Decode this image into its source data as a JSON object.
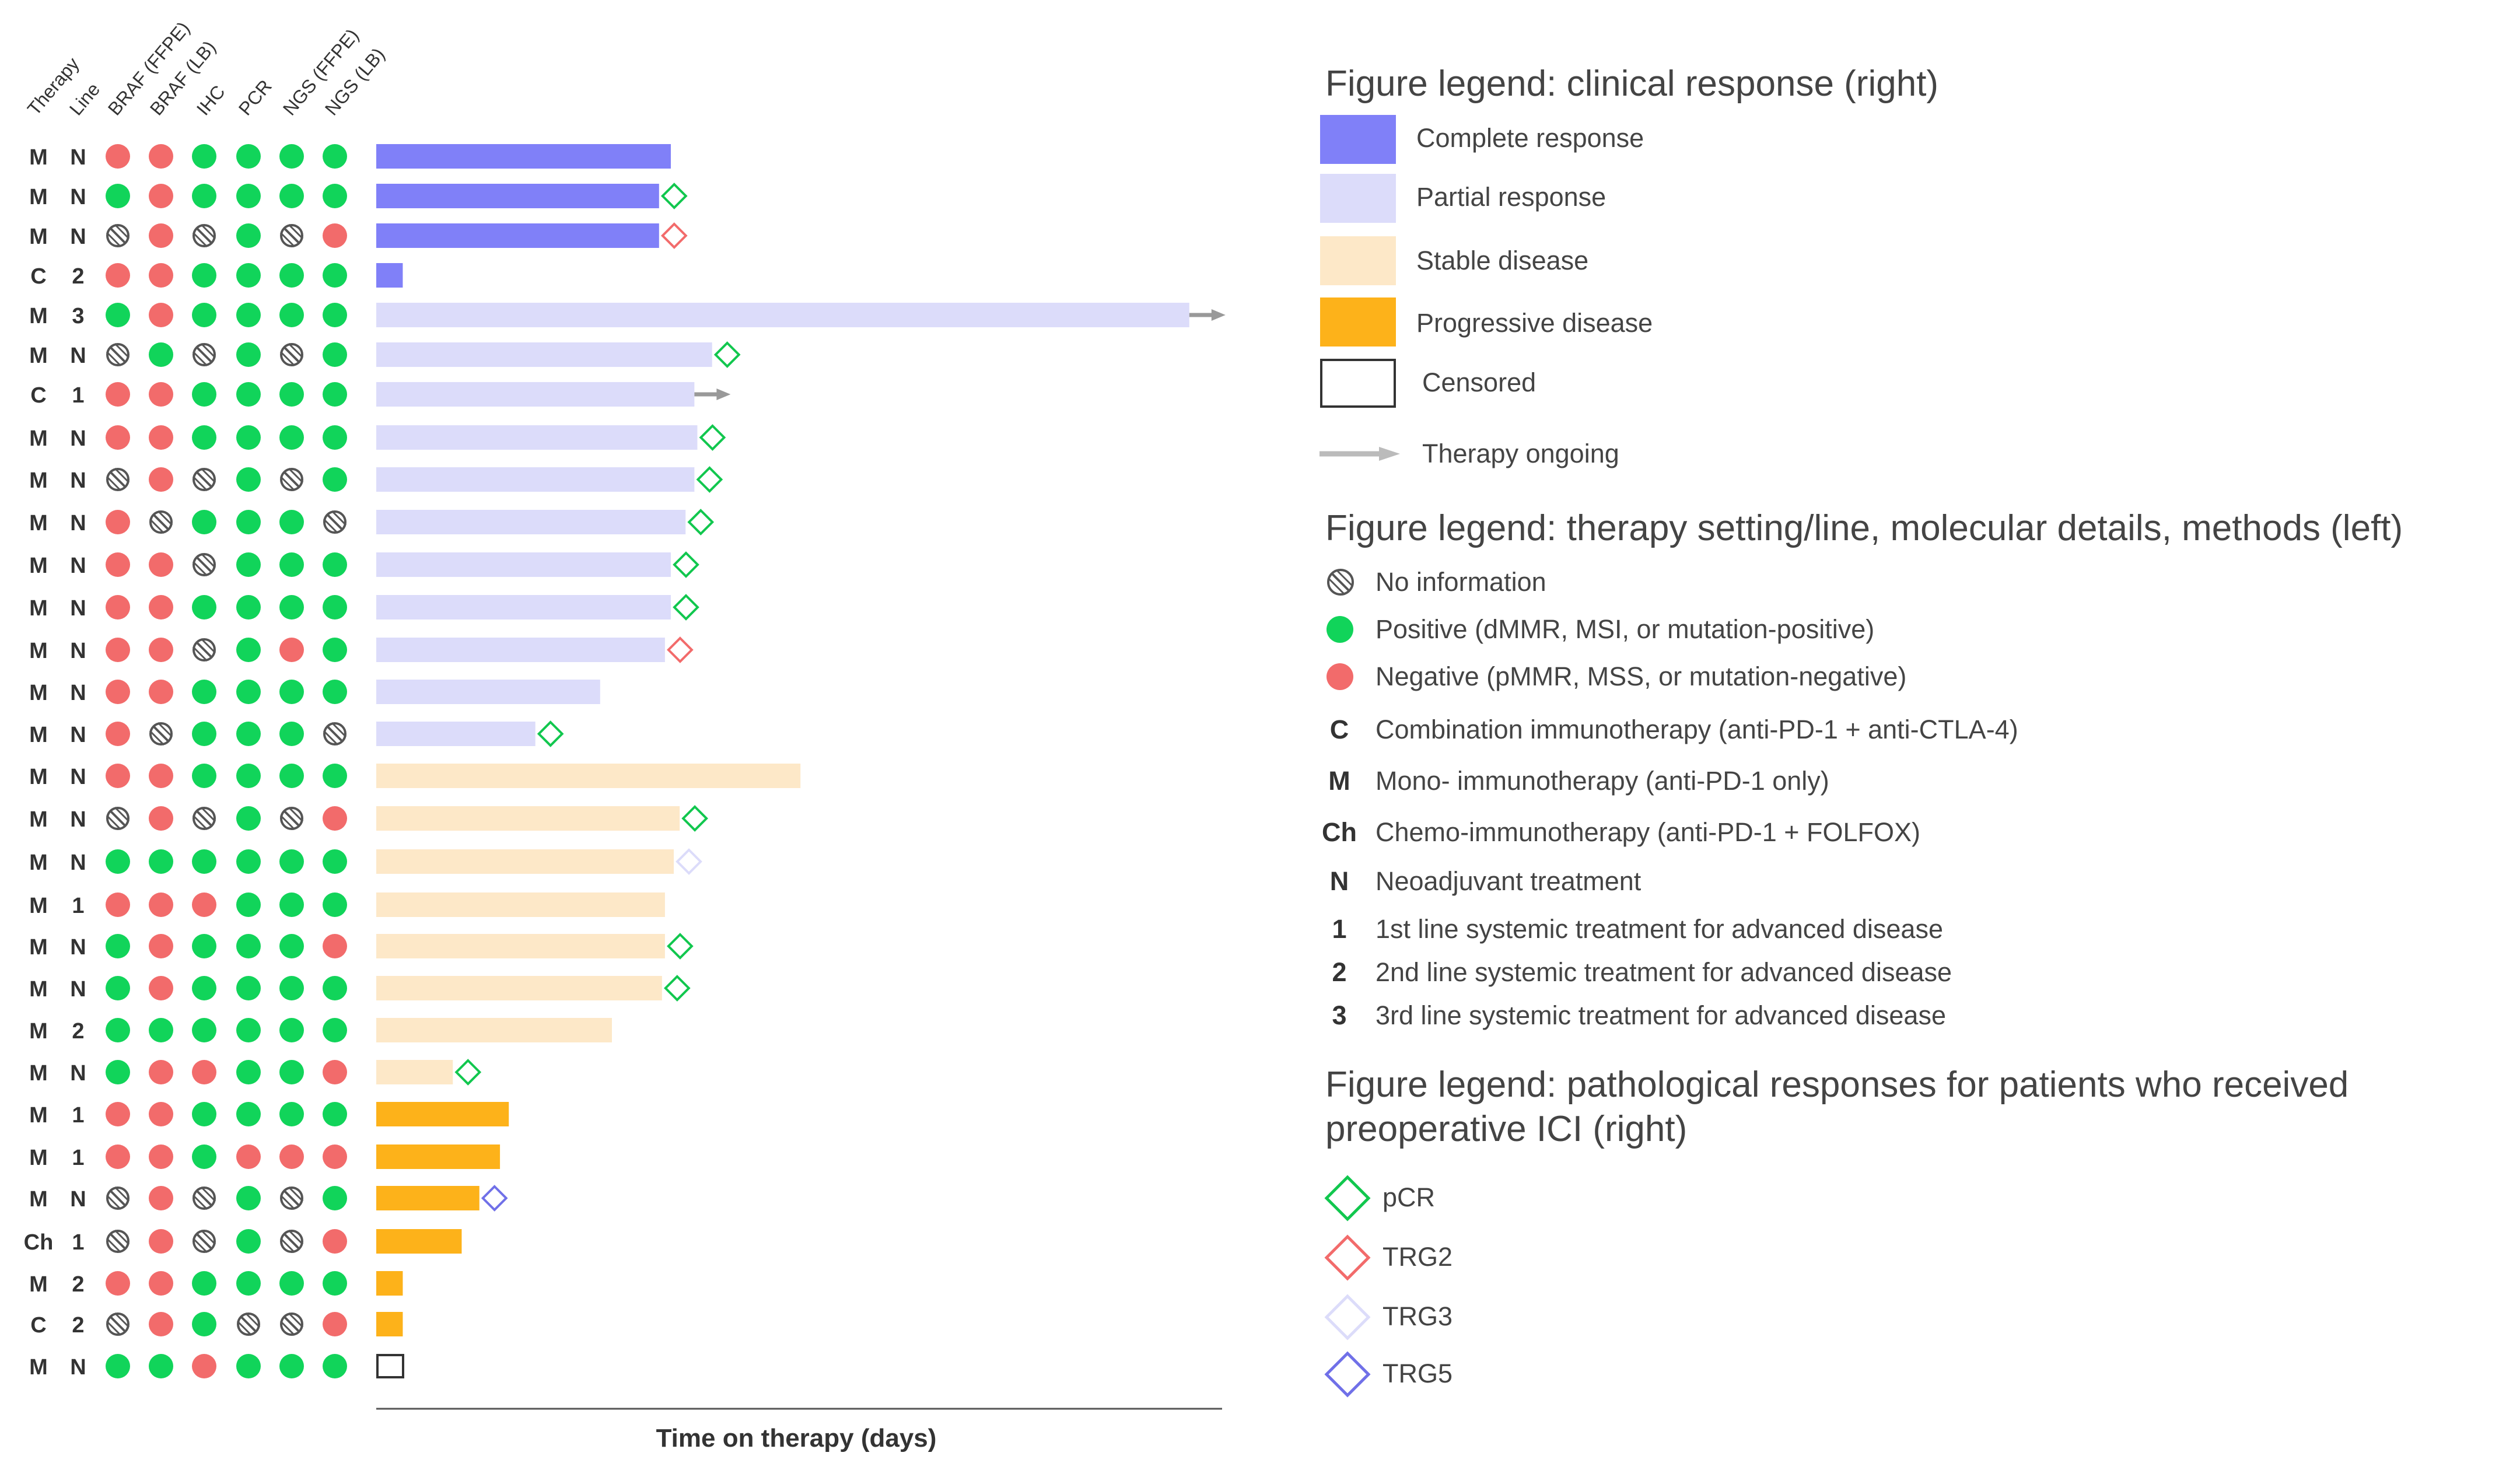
{
  "column_headers": [
    "Therapy",
    "Line",
    "BRAF (FFPE)",
    "BRAF (LB)",
    "IHC",
    "PCR",
    "NGS (FFPE)",
    "NGS (LB)"
  ],
  "colors": {
    "complete_response": "#8080F8",
    "partial_response": "#DCDCFA",
    "stable_disease": "#FDE8C8",
    "progressive_disease": "#FDB21A",
    "positive": "#11D45A",
    "negative": "#F26B6B",
    "pcr": "#11C74E",
    "trg2": "#F26B6B",
    "trg3": "#DCDCFA",
    "trg5": "#7070E8",
    "arrow": "#999999",
    "no_info": "#555555"
  },
  "chart_data": {
    "type": "swimmer",
    "xlabel": "Time on therapy (days)",
    "x_scale": "unlabeled",
    "rows": [
      {
        "therapy": "M",
        "line": "N",
        "markers": [
          "neg",
          "neg",
          "pos",
          "pos",
          "pos",
          "pos"
        ],
        "response": "complete_response",
        "value": 50,
        "path": null,
        "ongoing": false
      },
      {
        "therapy": "M",
        "line": "N",
        "markers": [
          "pos",
          "neg",
          "pos",
          "pos",
          "pos",
          "pos"
        ],
        "response": "complete_response",
        "value": 48,
        "path": "pCR",
        "ongoing": false
      },
      {
        "therapy": "M",
        "line": "N",
        "markers": [
          "ni",
          "neg",
          "ni",
          "pos",
          "ni",
          "neg"
        ],
        "response": "complete_response",
        "value": 48,
        "path": "TRG2",
        "ongoing": false
      },
      {
        "therapy": "C",
        "line": "2",
        "markers": [
          "neg",
          "neg",
          "pos",
          "pos",
          "pos",
          "pos"
        ],
        "response": "complete_response",
        "value": 4.5,
        "path": null,
        "ongoing": false
      },
      {
        "therapy": "M",
        "line": "3",
        "markers": [
          "pos",
          "neg",
          "pos",
          "pos",
          "pos",
          "pos"
        ],
        "response": "partial_response",
        "value": 138,
        "path": null,
        "ongoing": true
      },
      {
        "therapy": "M",
        "line": "N",
        "markers": [
          "ni",
          "pos",
          "ni",
          "pos",
          "ni",
          "pos"
        ],
        "response": "partial_response",
        "value": 57,
        "path": "pCR",
        "ongoing": false
      },
      {
        "therapy": "C",
        "line": "1",
        "markers": [
          "neg",
          "neg",
          "pos",
          "pos",
          "pos",
          "pos"
        ],
        "response": "partial_response",
        "value": 54,
        "path": null,
        "ongoing": true
      },
      {
        "therapy": "M",
        "line": "N",
        "markers": [
          "neg",
          "neg",
          "pos",
          "pos",
          "pos",
          "pos"
        ],
        "response": "partial_response",
        "value": 54.5,
        "path": "pCR",
        "ongoing": false
      },
      {
        "therapy": "M",
        "line": "N",
        "markers": [
          "ni",
          "neg",
          "ni",
          "pos",
          "ni",
          "pos"
        ],
        "response": "partial_response",
        "value": 54,
        "path": "pCR",
        "ongoing": false
      },
      {
        "therapy": "M",
        "line": "N",
        "markers": [
          "neg",
          "ni",
          "pos",
          "pos",
          "pos",
          "ni"
        ],
        "response": "partial_response",
        "value": 52.5,
        "path": "pCR",
        "ongoing": false
      },
      {
        "therapy": "M",
        "line": "N",
        "markers": [
          "neg",
          "neg",
          "ni",
          "pos",
          "pos",
          "pos"
        ],
        "response": "partial_response",
        "value": 50,
        "path": "pCR",
        "ongoing": false
      },
      {
        "therapy": "M",
        "line": "N",
        "markers": [
          "neg",
          "neg",
          "pos",
          "pos",
          "pos",
          "pos"
        ],
        "response": "partial_response",
        "value": 50,
        "path": "pCR",
        "ongoing": false
      },
      {
        "therapy": "M",
        "line": "N",
        "markers": [
          "neg",
          "neg",
          "ni",
          "pos",
          "neg",
          "pos"
        ],
        "response": "partial_response",
        "value": 49,
        "path": "TRG2",
        "ongoing": false
      },
      {
        "therapy": "M",
        "line": "N",
        "markers": [
          "neg",
          "neg",
          "pos",
          "pos",
          "pos",
          "pos"
        ],
        "response": "partial_response",
        "value": 38,
        "path": null,
        "ongoing": false
      },
      {
        "therapy": "M",
        "line": "N",
        "markers": [
          "neg",
          "ni",
          "pos",
          "pos",
          "pos",
          "ni"
        ],
        "response": "partial_response",
        "value": 27,
        "path": "pCR",
        "ongoing": false
      },
      {
        "therapy": "M",
        "line": "N",
        "markers": [
          "neg",
          "neg",
          "pos",
          "pos",
          "pos",
          "pos"
        ],
        "response": "stable_disease",
        "value": 72,
        "path": null,
        "ongoing": false
      },
      {
        "therapy": "M",
        "line": "N",
        "markers": [
          "ni",
          "neg",
          "ni",
          "pos",
          "ni",
          "neg"
        ],
        "response": "stable_disease",
        "value": 51.5,
        "path": "pCR",
        "ongoing": false
      },
      {
        "therapy": "M",
        "line": "N",
        "markers": [
          "pos",
          "pos",
          "pos",
          "pos",
          "pos",
          "pos"
        ],
        "response": "stable_disease",
        "value": 50.5,
        "path": "TRG3",
        "ongoing": false
      },
      {
        "therapy": "M",
        "line": "1",
        "markers": [
          "neg",
          "neg",
          "neg",
          "pos",
          "pos",
          "pos"
        ],
        "response": "stable_disease",
        "value": 49,
        "path": null,
        "ongoing": false
      },
      {
        "therapy": "M",
        "line": "N",
        "markers": [
          "pos",
          "neg",
          "pos",
          "pos",
          "pos",
          "neg"
        ],
        "response": "stable_disease",
        "value": 49,
        "path": "pCR",
        "ongoing": false
      },
      {
        "therapy": "M",
        "line": "N",
        "markers": [
          "pos",
          "neg",
          "pos",
          "pos",
          "pos",
          "pos"
        ],
        "response": "stable_disease",
        "value": 48.5,
        "path": "pCR",
        "ongoing": false
      },
      {
        "therapy": "M",
        "line": "2",
        "markers": [
          "pos",
          "pos",
          "pos",
          "pos",
          "pos",
          "pos"
        ],
        "response": "stable_disease",
        "value": 40,
        "path": null,
        "ongoing": false
      },
      {
        "therapy": "M",
        "line": "N",
        "markers": [
          "pos",
          "neg",
          "neg",
          "pos",
          "pos",
          "neg"
        ],
        "response": "stable_disease",
        "value": 13,
        "path": "pCR",
        "ongoing": false
      },
      {
        "therapy": "M",
        "line": "1",
        "markers": [
          "neg",
          "neg",
          "pos",
          "pos",
          "pos",
          "pos"
        ],
        "response": "progressive_disease",
        "value": 22.5,
        "path": null,
        "ongoing": false
      },
      {
        "therapy": "M",
        "line": "1",
        "markers": [
          "neg",
          "neg",
          "pos",
          "neg",
          "neg",
          "neg"
        ],
        "response": "progressive_disease",
        "value": 21,
        "path": null,
        "ongoing": false
      },
      {
        "therapy": "M",
        "line": "N",
        "markers": [
          "ni",
          "neg",
          "ni",
          "pos",
          "ni",
          "pos"
        ],
        "response": "progressive_disease",
        "value": 17.5,
        "path": "TRG5",
        "ongoing": false
      },
      {
        "therapy": "Ch",
        "line": "1",
        "markers": [
          "ni",
          "neg",
          "ni",
          "pos",
          "ni",
          "neg"
        ],
        "response": "progressive_disease",
        "value": 14.5,
        "path": null,
        "ongoing": false
      },
      {
        "therapy": "M",
        "line": "2",
        "markers": [
          "neg",
          "neg",
          "pos",
          "pos",
          "pos",
          "pos"
        ],
        "response": "progressive_disease",
        "value": 4.5,
        "path": null,
        "ongoing": false
      },
      {
        "therapy": "C",
        "line": "2",
        "markers": [
          "ni",
          "neg",
          "pos",
          "ni",
          "ni",
          "neg"
        ],
        "response": "progressive_disease",
        "value": 4.5,
        "path": null,
        "ongoing": false
      },
      {
        "therapy": "M",
        "line": "N",
        "markers": [
          "pos",
          "pos",
          "neg",
          "pos",
          "pos",
          "pos"
        ],
        "response": "censored",
        "value": 5,
        "path": null,
        "ongoing": false
      }
    ]
  },
  "legend": {
    "clinical_title": "Figure legend: clinical response (right)",
    "clinical_items": [
      {
        "key": "complete_response",
        "label": "Complete response"
      },
      {
        "key": "partial_response",
        "label": "Partial response"
      },
      {
        "key": "stable_disease",
        "label": "Stable disease"
      },
      {
        "key": "progressive_disease",
        "label": "Progressive disease"
      },
      {
        "key": "censored",
        "label": "Censored"
      }
    ],
    "ongoing_label": "Therapy ongoing",
    "setting_title": "Figure legend: therapy setting/line, molecular details, methods (left)",
    "no_info_label": "No information",
    "positive_label": "Positive (dMMR, MSI, or mutation-positive)",
    "negative_label": "Negative (pMMR, MSS, or mutation-negative)",
    "codes": [
      {
        "code": "C",
        "label": "Combination immunotherapy (anti-PD-1 + anti-CTLA-4)"
      },
      {
        "code": "M",
        "label": "Mono- immunotherapy (anti-PD-1 only)"
      },
      {
        "code": "Ch",
        "label": "Chemo-immunotherapy (anti-PD-1 + FOLFOX)"
      },
      {
        "code": "N",
        "label": "Neoadjuvant treatment"
      },
      {
        "code": "1",
        "label": "1st line systemic treatment for advanced disease"
      },
      {
        "code": "2",
        "label": "2nd line systemic treatment for advanced disease"
      },
      {
        "code": "3",
        "label": "3rd line systemic treatment for advanced disease"
      }
    ],
    "path_title_1": "Figure legend: pathological responses for patients who received",
    "path_title_2": "preoperative ICI (right)",
    "path_items": [
      {
        "key": "pcr",
        "label": "pCR"
      },
      {
        "key": "trg2",
        "label": "TRG2"
      },
      {
        "key": "trg3",
        "label": "TRG3"
      },
      {
        "key": "trg5",
        "label": "TRG5"
      }
    ]
  }
}
